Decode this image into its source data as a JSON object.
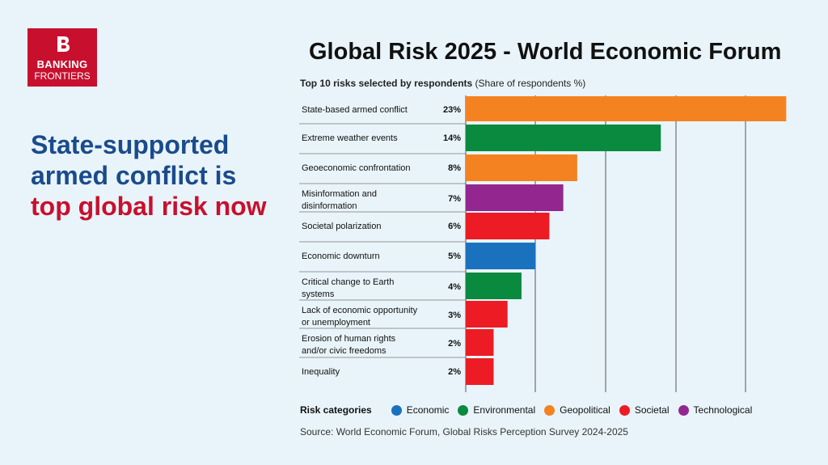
{
  "logo": {
    "line1": "BANKING",
    "line2": "FRONTIERS"
  },
  "headline": {
    "line1": "State-supported",
    "line2": "armed conflict is",
    "line3": "top global risk now"
  },
  "colors": {
    "Economic": "#1a72be",
    "Environmental": "#0a8a3e",
    "Geopolitical": "#f58220",
    "Societal": "#ed1c24",
    "Technological": "#93278f",
    "headline_blue": "#1a4b8c",
    "headline_red": "#c8102e"
  },
  "legend": {
    "title": "Risk categories",
    "items": [
      "Economic",
      "Environmental",
      "Geopolitical",
      "Societal",
      "Technological"
    ]
  },
  "source": "Source: World Economic Forum, Global Risks Perception Survey 2024-2025",
  "chart_data": {
    "type": "bar",
    "orientation": "horizontal",
    "title": "Global Risk 2025 - World Economic Forum",
    "subtitle_bold": "Top 10 risks selected by respondents",
    "subtitle_rest": " (Share of respondents %)",
    "categories": [
      [
        "State-based armed conflict"
      ],
      [
        "Extreme weather events"
      ],
      [
        "Geoeconomic confrontation"
      ],
      [
        "Misinformation and",
        "disinformation"
      ],
      [
        "Societal polarization"
      ],
      [
        "Economic downturn"
      ],
      [
        "Critical change to Earth",
        "systems"
      ],
      [
        "Lack of economic opportunity",
        "or unemployment"
      ],
      [
        "Erosion of human rights",
        "and/or civic freedoms"
      ],
      [
        "Inequality"
      ]
    ],
    "values": [
      23,
      14,
      8,
      7,
      6,
      5,
      4,
      3,
      2,
      2
    ],
    "value_labels": [
      "23%",
      "14%",
      "8%",
      "7%",
      "6%",
      "5%",
      "4%",
      "3%",
      "2%",
      "2%"
    ],
    "risk_category": [
      "Geopolitical",
      "Environmental",
      "Geopolitical",
      "Technological",
      "Societal",
      "Economic",
      "Environmental",
      "Societal",
      "Societal",
      "Societal"
    ],
    "xlim": [
      0,
      23.5
    ],
    "grid": true,
    "legend_position": "bottom"
  }
}
